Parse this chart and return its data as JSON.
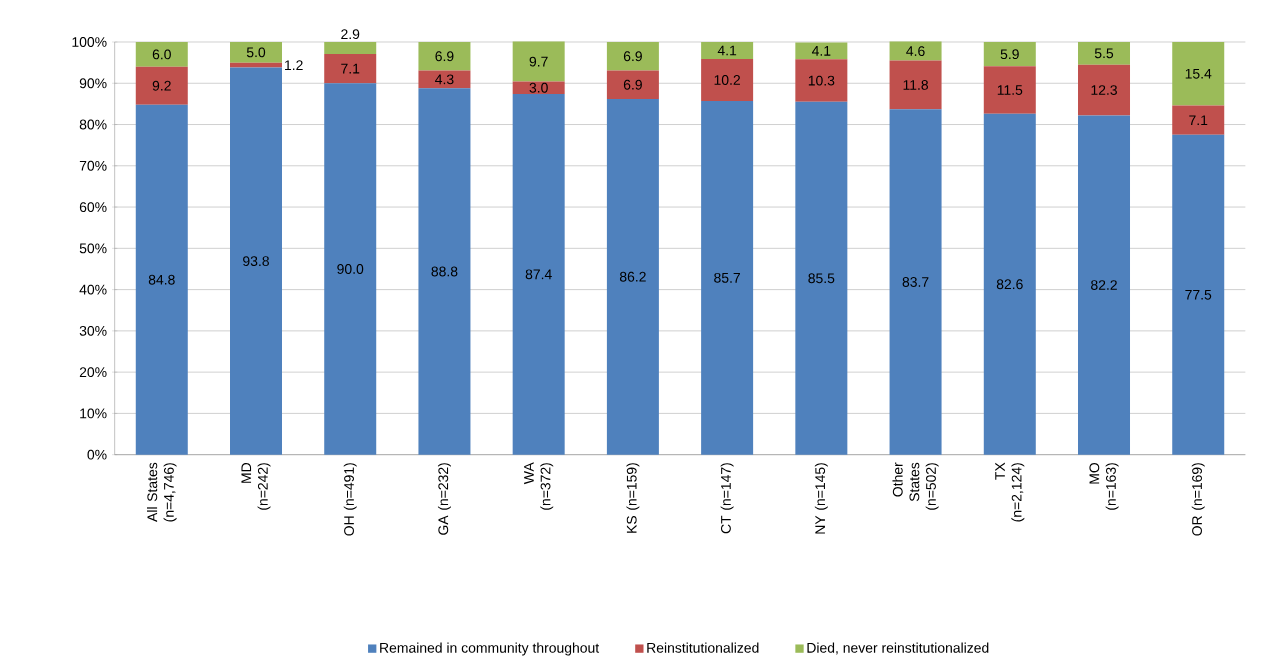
{
  "chart_data": {
    "type": "bar",
    "stacked": true,
    "data_labels": true,
    "grid": "y",
    "legend": "bottom",
    "categories": [
      "All States (n=4,746)",
      "MD (n=242)",
      "OH (n=491)",
      "GA (n=232)",
      "WA (n=372)",
      "KS (n=159)",
      "CT (n=147)",
      "NY (n=145)",
      "Other States (n=502)",
      "TX (n=2,124)",
      "MO (n=163)",
      "OR (n=169)"
    ],
    "ylim": [
      0,
      100
    ],
    "yticks": [
      {
        "value": 0,
        "label": "0%"
      },
      {
        "value": 10,
        "label": "10%"
      },
      {
        "value": 20,
        "label": "20%"
      },
      {
        "value": 30,
        "label": "30%"
      },
      {
        "value": 40,
        "label": "40%"
      },
      {
        "value": 50,
        "label": "50%"
      },
      {
        "value": 60,
        "label": "60%"
      },
      {
        "value": 70,
        "label": "70%"
      },
      {
        "value": 80,
        "label": "80%"
      },
      {
        "value": 90,
        "label": "90%"
      },
      {
        "value": 100,
        "label": "100%"
      }
    ],
    "series": [
      {
        "name": "Remained in community throughout",
        "color": "#4f81bd",
        "values": [
          84.8,
          93.8,
          90.0,
          88.8,
          87.4,
          86.2,
          85.7,
          85.5,
          83.7,
          82.6,
          82.2,
          77.5
        ],
        "value_labels": [
          "84.8",
          "93.8",
          "90.0",
          "88.8",
          "87.4",
          "86.2",
          "85.7",
          "85.5",
          "83.7",
          "82.6",
          "82.2",
          "77.5"
        ]
      },
      {
        "name": "Reinstitutionalized",
        "color": "#c0504d",
        "values": [
          9.2,
          1.2,
          7.1,
          4.3,
          3.0,
          6.9,
          10.2,
          10.3,
          11.8,
          11.5,
          12.3,
          7.1
        ],
        "value_labels": [
          "9.2",
          "1.2",
          "7.1",
          "4.3",
          "3.0",
          "6.9",
          "10.2",
          "10.3",
          "11.8",
          "11.5",
          "12.3",
          "7.1"
        ]
      },
      {
        "name": "Died, never reinstitutionalized",
        "color": "#9bbb59",
        "values": [
          6.0,
          5.0,
          2.9,
          6.9,
          9.7,
          6.9,
          4.1,
          4.1,
          4.6,
          5.9,
          5.5,
          15.4
        ],
        "value_labels": [
          "6.0",
          "5.0",
          "2.9",
          "6.9",
          "9.7",
          "6.9",
          "4.1",
          "4.1",
          "4.6",
          "5.9",
          "5.5",
          "15.4"
        ]
      }
    ]
  }
}
